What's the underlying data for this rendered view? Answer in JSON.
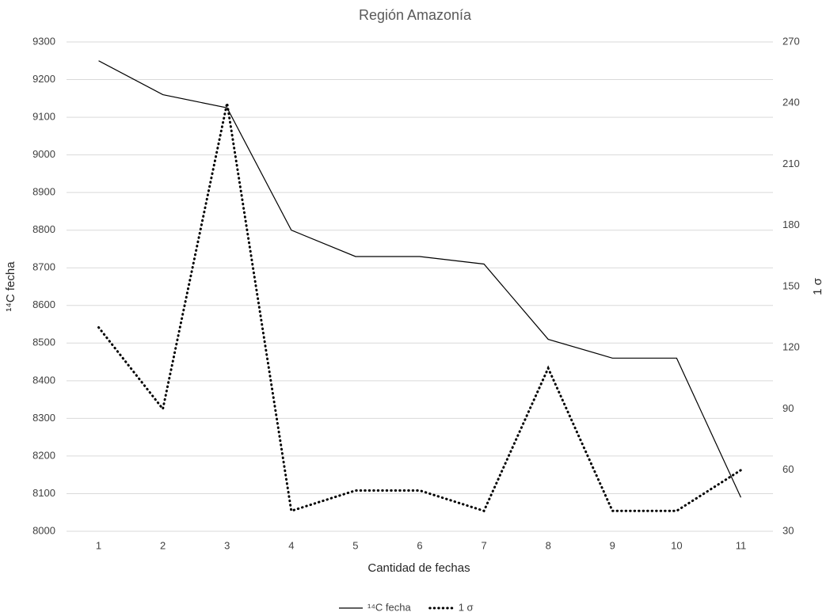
{
  "chart_data": {
    "type": "line",
    "title": "Región Amazonía",
    "x_label": "Cantidad de fechas",
    "y_label": "¹⁴C fecha",
    "y2_label": "1 σ",
    "categories": [
      "1",
      "2",
      "3",
      "4",
      "5",
      "6",
      "7",
      "8",
      "9",
      "10",
      "11"
    ],
    "series": [
      {
        "name": "¹⁴C fecha",
        "color": "#000000",
        "style": "solid",
        "values": [
          9250,
          9160,
          9125,
          8800,
          8730,
          8730,
          8710,
          8510,
          8460,
          8460,
          8090
        ]
      },
      {
        "name": "1 σ",
        "color": "#000000",
        "style": "dotted",
        "axis": "y2",
        "values": [
          130,
          90,
          240,
          40,
          50,
          50,
          40,
          110,
          40,
          40,
          60
        ]
      }
    ],
    "ylim": [
      8000,
      9300
    ],
    "yticks": [
      8000,
      8100,
      8200,
      8300,
      8400,
      8500,
      8600,
      8700,
      8800,
      8900,
      9000,
      9100,
      9200,
      9300
    ],
    "y2lim": [
      30,
      270
    ],
    "y2ticks": [
      30,
      60,
      90,
      120,
      150,
      180,
      210,
      240,
      270
    ],
    "grid": true,
    "legend": "bottom"
  }
}
